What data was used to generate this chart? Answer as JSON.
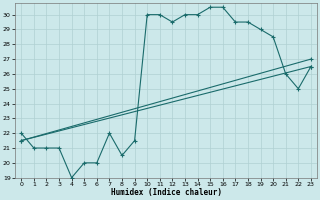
{
  "xlabel": "Humidex (Indice chaleur)",
  "bg_color": "#cce8ea",
  "grid_color": "#b0d0d3",
  "line_color": "#1a6b6b",
  "xlim": [
    -0.5,
    23.5
  ],
  "ylim": [
    19,
    30.8
  ],
  "yticks": [
    19,
    20,
    21,
    22,
    23,
    24,
    25,
    26,
    27,
    28,
    29,
    30
  ],
  "xticks": [
    0,
    1,
    2,
    3,
    4,
    5,
    6,
    7,
    8,
    9,
    10,
    11,
    12,
    13,
    14,
    15,
    16,
    17,
    18,
    19,
    20,
    21,
    22,
    23
  ],
  "line1_x": [
    0,
    1,
    2,
    3,
    4,
    5,
    6,
    7,
    8,
    9,
    10,
    11,
    12,
    13,
    14,
    15,
    16,
    17,
    18,
    19,
    20,
    21,
    22,
    23
  ],
  "line1_y": [
    22,
    21,
    21,
    21,
    19,
    20,
    20,
    22,
    20.5,
    21.5,
    30,
    30,
    29.5,
    30,
    30,
    30.5,
    30.5,
    29.5,
    29.5,
    29,
    28.5,
    26,
    25,
    26.5
  ],
  "line2_x": [
    0,
    23
  ],
  "line2_y": [
    21.5,
    26.5
  ],
  "line3_x": [
    0,
    23
  ],
  "line3_y": [
    21.5,
    27.0
  ],
  "figsize": [
    3.2,
    2.0
  ],
  "dpi": 100
}
